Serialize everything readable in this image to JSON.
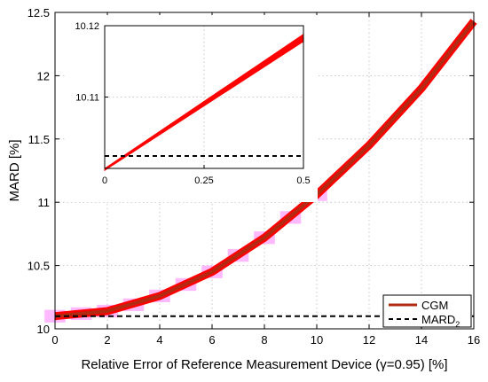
{
  "chart_data": {
    "type": "line",
    "xlabel": "Relative Error of Reference Measurement Device (γ=0.95) [%]",
    "ylabel": "MARD [%]",
    "xlim": [
      0,
      16
    ],
    "ylim": [
      10,
      12.5
    ],
    "xticks": [
      "0",
      "2",
      "4",
      "6",
      "8",
      "10",
      "12",
      "14",
      "16"
    ],
    "yticks": [
      "10",
      "10.5",
      "11",
      "11.5",
      "12",
      "12.5"
    ],
    "grid": true,
    "legend_position": "bottom-right",
    "colors": {
      "cgm_line": "#b22a12",
      "cgm_band": "#ff0000",
      "boxes": "#ff7fff",
      "mard2": "#000000"
    },
    "series": [
      {
        "name": "CGM",
        "x": [
          0,
          2,
          4,
          6,
          8,
          10,
          12,
          14,
          16
        ],
        "y": [
          10.1,
          10.14,
          10.26,
          10.45,
          10.72,
          11.06,
          11.45,
          11.9,
          12.43
        ]
      },
      {
        "name": "MARD2",
        "x": [
          0,
          16
        ],
        "y": [
          10.1,
          10.1
        ]
      }
    ],
    "box_markers": {
      "x": [
        0,
        1,
        2,
        3,
        4,
        5,
        6,
        7,
        8,
        9,
        10
      ],
      "y": [
        10.1,
        10.12,
        10.14,
        10.19,
        10.26,
        10.35,
        10.45,
        10.58,
        10.72,
        10.88,
        11.06
      ],
      "half_height": 0.05
    },
    "inset": {
      "xlim": [
        0,
        0.5
      ],
      "ylim": [
        10.1,
        10.12
      ],
      "xticks": [
        "0",
        "0.25",
        "0.5"
      ],
      "yticks": [
        "10.11",
        "10.12"
      ],
      "band_lower_end": 10.1178,
      "band_upper_end": 10.1188,
      "band_start": 10.1001,
      "mard2_value": 10.1
    },
    "legend": [
      {
        "label_main": "CGM",
        "label_sub": ""
      },
      {
        "label_main": "MARD",
        "label_sub": "2"
      }
    ]
  }
}
